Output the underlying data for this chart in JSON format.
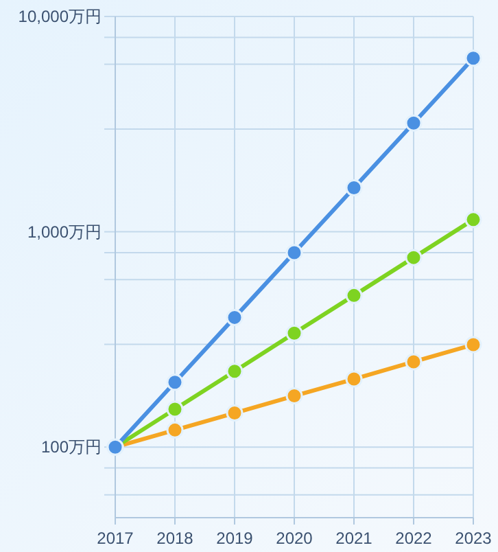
{
  "chart_data": {
    "type": "line",
    "categories": [
      "2017",
      "2018",
      "2019",
      "2020",
      "2021",
      "2022",
      "2023"
    ],
    "series": [
      {
        "color": "#4a90e2",
        "values": [
          100,
          200,
          400,
          800,
          1600,
          3200,
          6400
        ]
      },
      {
        "color": "#7ed321",
        "values": [
          100,
          150,
          225,
          338,
          506,
          759,
          1139
        ]
      },
      {
        "color": "#f5a623",
        "values": [
          100,
          120,
          144,
          173,
          207,
          249,
          299
        ]
      }
    ],
    "log": "y",
    "ylim": [
      47,
      10000
    ],
    "yticks": [
      {
        "value": 60,
        "label": null
      },
      {
        "value": 80,
        "label": null
      },
      {
        "value": 100,
        "label": "100万円"
      },
      {
        "value": 300,
        "label": null
      },
      {
        "value": 600,
        "label": null
      },
      {
        "value": 800,
        "label": null
      },
      {
        "value": 1000,
        "label": "1,000万円"
      },
      {
        "value": 3000,
        "label": null
      },
      {
        "value": 6000,
        "label": null
      },
      {
        "value": 8000,
        "label": null
      },
      {
        "value": 10000,
        "label": "10,000万円"
      }
    ],
    "grid": true,
    "marker": "circle",
    "line_style": "solid"
  }
}
